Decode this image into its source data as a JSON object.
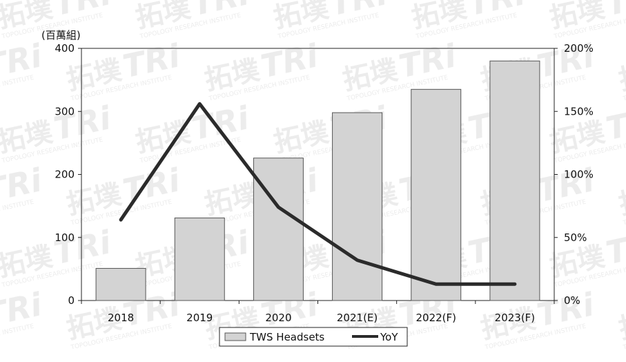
{
  "chart_data": {
    "type": "bar",
    "title": "",
    "left_unit_label": "(百萬組)",
    "categories": [
      "2018",
      "2019",
      "2020",
      "2021(E)",
      "2022(F)",
      "2023(F)"
    ],
    "series": [
      {
        "name": "TWS Headsets",
        "type": "bar",
        "axis": "left",
        "values": [
          51,
          131,
          226,
          298,
          335,
          380
        ]
      },
      {
        "name": "YoY",
        "type": "line",
        "axis": "right",
        "values": [
          64,
          156,
          74,
          32,
          13,
          13
        ]
      }
    ],
    "y_left": {
      "min": 0,
      "max": 400,
      "ticks": [
        "0",
        "100",
        "200",
        "300",
        "400"
      ]
    },
    "y_right": {
      "min": 0,
      "max": 200,
      "ticks": [
        "0%",
        "50%",
        "100%",
        "150%",
        "200%"
      ]
    },
    "grid": false,
    "legend": {
      "position": "bottom",
      "items": [
        "TWS Headsets",
        "YoY"
      ]
    },
    "colors": {
      "bar_fill": "#d3d3d3",
      "bar_stroke": "#555555",
      "line": "#2b2b2b"
    },
    "watermark": {
      "brand": "拓墣",
      "logo": "TRi",
      "tagline": "TOPOLOGY RESEARCH INSTITUTE"
    }
  }
}
